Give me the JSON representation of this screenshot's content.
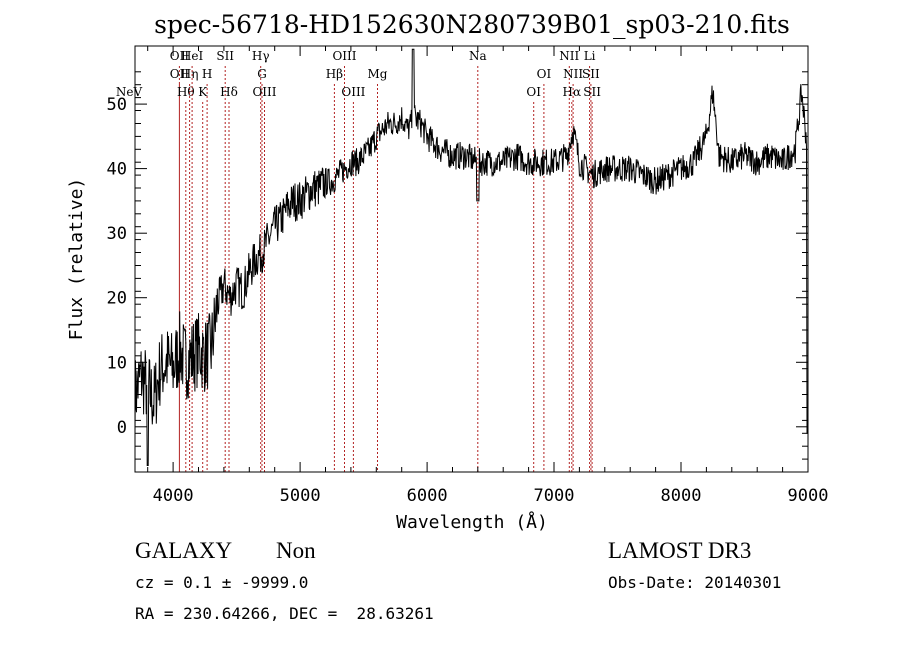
{
  "chart_data": {
    "type": "line",
    "title": "spec-56718-HD152630N280739B01_sp03-210.fits",
    "xlabel": "Wavelength (Å)",
    "ylabel": "Flux (relative)",
    "xlim": [
      3700,
      9000
    ],
    "ylim": [
      -7,
      59
    ],
    "x_ticks": [
      4000,
      5000,
      6000,
      7000,
      8000,
      9000
    ],
    "y_ticks": [
      0,
      10,
      20,
      30,
      40,
      50
    ],
    "grid": false,
    "legend": "none",
    "line_color": "#000000",
    "marker_color": "#b22222",
    "series": [
      {
        "x": [
          3700,
          3750,
          3800,
          3850,
          3900,
          3950,
          4000,
          4050,
          4100,
          4150,
          4200,
          4250,
          4300,
          4350,
          4400,
          4450,
          4500,
          4550,
          4600,
          4650,
          4700,
          4750,
          4800,
          4850,
          4900,
          4950,
          5000,
          5050,
          5100,
          5150,
          5200,
          5250,
          5300,
          5350,
          5400,
          5450,
          5500,
          5550,
          5600,
          5650,
          5700,
          5750,
          5800,
          5850,
          5900,
          5950,
          6000,
          6100,
          6200,
          6300,
          6400,
          6500,
          6600,
          6700,
          6800,
          6900,
          7000,
          7100,
          7150,
          7200,
          7300,
          7400,
          7500,
          7600,
          7700,
          7800,
          7900,
          8000,
          8100,
          8200,
          8250,
          8300,
          8400,
          8500,
          8600,
          8700,
          8800,
          8900,
          8950,
          9000
        ],
        "y": [
          5,
          8,
          6,
          4,
          9,
          10,
          9,
          12,
          10,
          11,
          12,
          11,
          12,
          19,
          22,
          20,
          22,
          21,
          24,
          26,
          27,
          29,
          31,
          32,
          34,
          35,
          35,
          36,
          37,
          37,
          38,
          38,
          39,
          40,
          41,
          41,
          42,
          43,
          45,
          46,
          47,
          47,
          48,
          46,
          48,
          47,
          45,
          43,
          42,
          42,
          41,
          41,
          41,
          42,
          41,
          41,
          41,
          42,
          46,
          41,
          39,
          40,
          40,
          40,
          39,
          38,
          39,
          40,
          41,
          45,
          52,
          42,
          41,
          42,
          41,
          42,
          41,
          43,
          52,
          42
        ]
      }
    ],
    "line_markers": [
      {
        "label": "NeV",
        "x": 3426,
        "row": 3
      },
      {
        "label": "OII",
        "x": 4050,
        "row": 1
      },
      {
        "label": "OII",
        "x": 4050,
        "row": 2
      },
      {
        "label": "Hθ",
        "x": 4100,
        "row": 3
      },
      {
        "label": "Hη",
        "x": 4130,
        "row": 2
      },
      {
        "label": "HeI",
        "x": 4150,
        "row": 1
      },
      {
        "label": "K",
        "x": 4233,
        "row": 3
      },
      {
        "label": "H",
        "x": 4268,
        "row": 2
      },
      {
        "label": "SII",
        "x": 4410,
        "row": 1
      },
      {
        "label": "Hδ",
        "x": 4440,
        "row": 3
      },
      {
        "label": "Hγ",
        "x": 4690,
        "row": 1
      },
      {
        "label": "G",
        "x": 4700,
        "row": 2
      },
      {
        "label": "OIII",
        "x": 4720,
        "row": 3
      },
      {
        "label": "Hβ",
        "x": 5270,
        "row": 2
      },
      {
        "label": "OIII",
        "x": 5350,
        "row": 1
      },
      {
        "label": "OIII",
        "x": 5420,
        "row": 3
      },
      {
        "label": "Mg",
        "x": 5610,
        "row": 2
      },
      {
        "label": "Na",
        "x": 6400,
        "row": 1
      },
      {
        "label": "OI",
        "x": 6840,
        "row": 3
      },
      {
        "label": "OI",
        "x": 6920,
        "row": 2
      },
      {
        "label": "NII",
        "x": 7120,
        "row": 1
      },
      {
        "label": "NII",
        "x": 7150,
        "row": 2
      },
      {
        "label": "Hα",
        "x": 7140,
        "row": 3
      },
      {
        "label": "Li",
        "x": 7280,
        "row": 1
      },
      {
        "label": "SII",
        "x": 7290,
        "row": 2
      },
      {
        "label": "SII",
        "x": 7300,
        "row": 3
      }
    ]
  },
  "info": {
    "class": "GALAXY",
    "subclass": "Non",
    "cz": "cz = 0.1 ± -9999.0",
    "coords": "RA = 230.64266, DEC =  28.63261",
    "survey": "LAMOST DR3",
    "obs_date": "Obs-Date: 20140301"
  }
}
